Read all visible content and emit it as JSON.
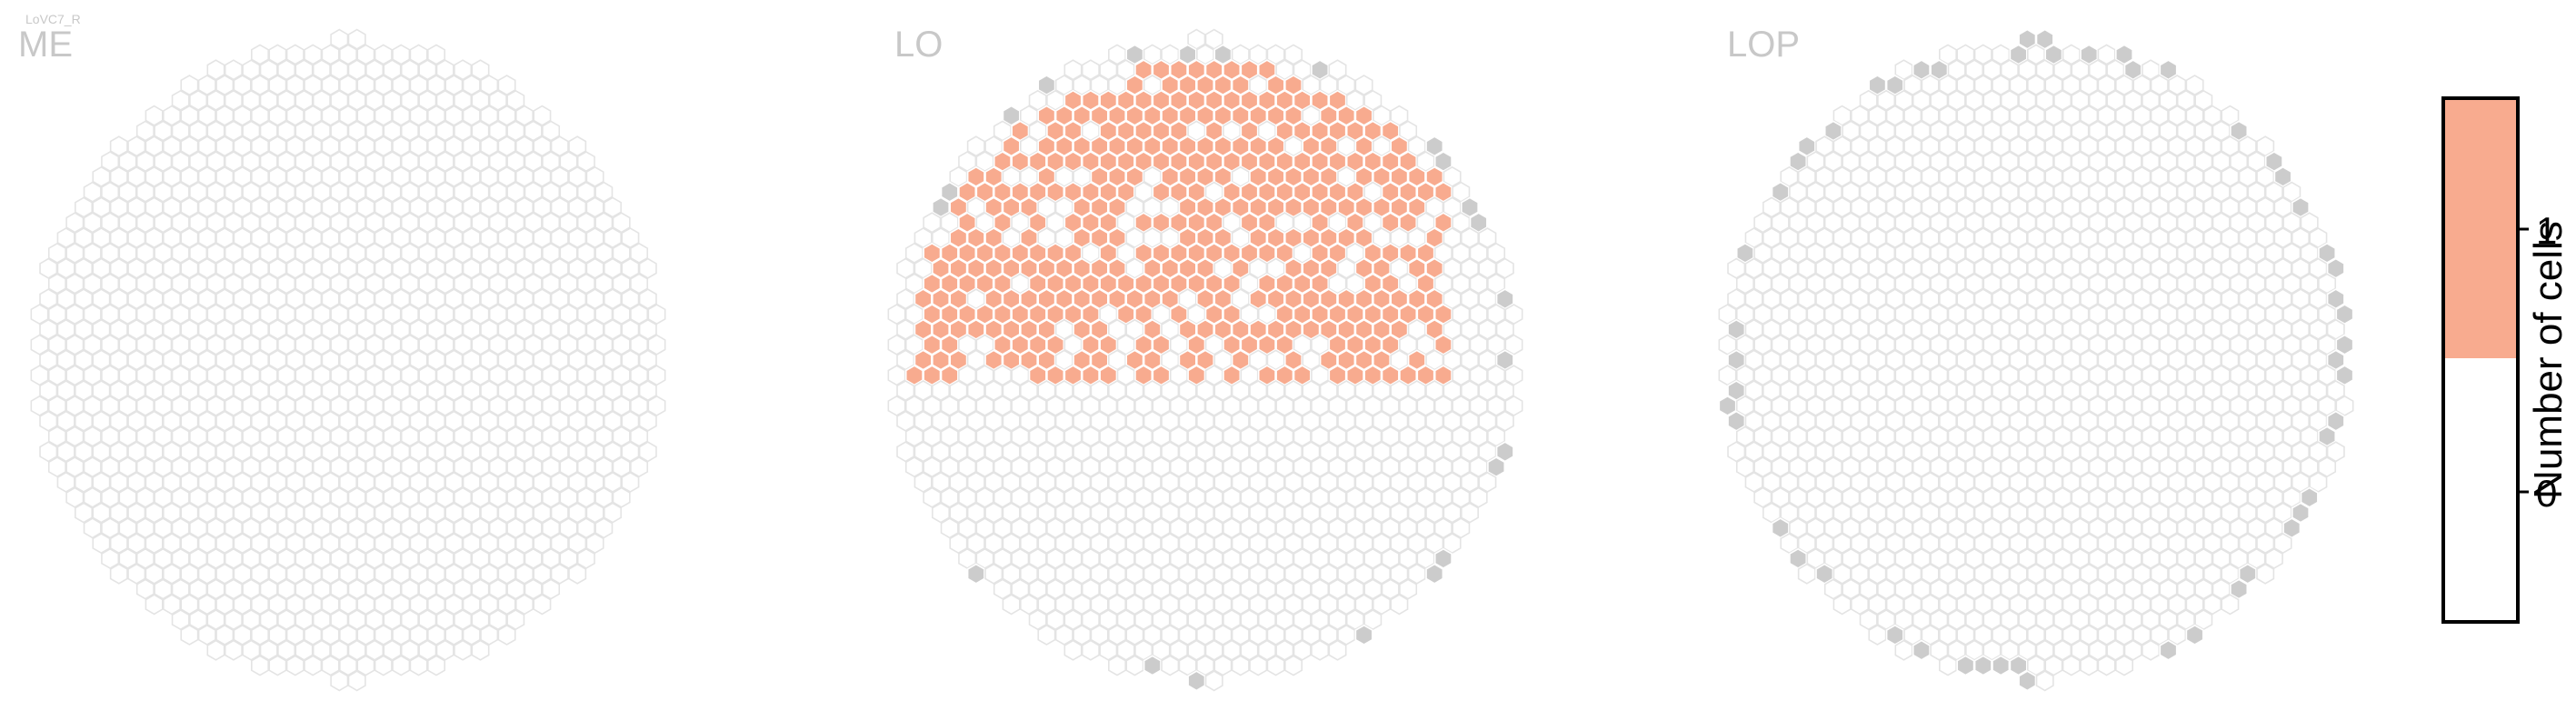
{
  "colors": {
    "empty_stroke": "#e4e4e4",
    "edge_fill": "#cccccc",
    "count_fill": "#f8ab8f",
    "title_gray": "#c8c8c8",
    "colorbar_frame": "#000000"
  },
  "chart_data": {
    "type": "heatmap",
    "cell_type": "LoVC7_R",
    "panels": [
      {
        "title": "ME",
        "occupied_count": 0,
        "edge_count": 0
      },
      {
        "title": "LO",
        "occupied_count": 1,
        "note_regions": "upper half of LO columns carry count 1",
        "edge_count": 1
      },
      {
        "title": "LOP",
        "occupied_count": 0,
        "edge_count": 1
      }
    ],
    "colorbar": {
      "label": "Number of cells",
      "ticks": [
        "0",
        "1"
      ],
      "range": [
        -0.5,
        1.5
      ],
      "bins": [
        {
          "from": -0.5,
          "to": 0.5,
          "color": "#ffffff"
        },
        {
          "from": 0.5,
          "to": 1.5,
          "color": "#f8ab8f"
        }
      ]
    }
  }
}
